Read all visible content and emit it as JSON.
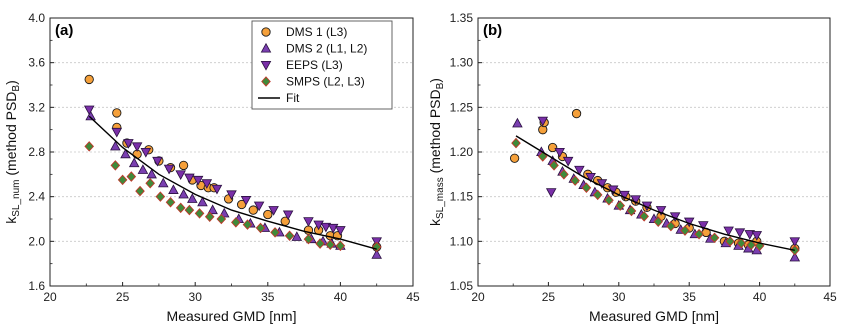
{
  "chart_data": [
    {
      "type": "scatter",
      "panel_label": "(a)",
      "xlabel": "Measured GMD [nm]",
      "ylabel": {
        "main": "k",
        "sub": "SL_num",
        "tail": " (method PSD",
        "tail_sub": "B",
        "end": ")"
      },
      "xlim": [
        20,
        45
      ],
      "ylim": [
        1.6,
        4.0
      ],
      "xticks": [
        "20",
        "25",
        "30",
        "35",
        "40",
        "45"
      ],
      "yticks": [
        "1.6",
        "2.0",
        "2.4",
        "2.8",
        "3.2",
        "3.6",
        "4.0"
      ],
      "grid": "horizontal dotted",
      "legend_position": "top-right",
      "series": [
        {
          "name": "DMS 1 (L3)",
          "marker": "circle",
          "color": "#f5a03a",
          "x": [
            22.7,
            24.6,
            24.6,
            25.3,
            26.0,
            26.8,
            27.5,
            28.3,
            29.2,
            29.8,
            30.4,
            30.9,
            31.3,
            32.3,
            33.2,
            34.0,
            35.0,
            36.2,
            37.8,
            38.5,
            39.3,
            39.8,
            42.5
          ],
          "y": [
            3.45,
            3.15,
            3.02,
            2.88,
            2.78,
            2.82,
            2.72,
            2.66,
            2.68,
            2.55,
            2.5,
            2.48,
            2.48,
            2.38,
            2.33,
            2.28,
            2.24,
            2.18,
            2.1,
            2.1,
            2.05,
            2.05,
            1.95
          ]
        },
        {
          "name": "DMS 2 (L1, L2)",
          "marker": "triangle-up",
          "color": "#7a3fb0",
          "x": [
            22.8,
            24.5,
            25.2,
            25.8,
            26.4,
            27.0,
            27.8,
            28.5,
            29.2,
            29.8,
            30.5,
            31.2,
            32.0,
            33.0,
            33.8,
            34.8,
            35.8,
            37.0,
            38.0,
            38.8,
            39.4,
            40.0,
            42.5
          ],
          "y": [
            3.12,
            2.85,
            2.78,
            2.7,
            2.64,
            2.6,
            2.52,
            2.46,
            2.42,
            2.38,
            2.35,
            2.28,
            2.25,
            2.2,
            2.16,
            2.12,
            2.08,
            2.04,
            2.02,
            2.0,
            1.98,
            1.96,
            1.88
          ]
        },
        {
          "name": "EEPS (L3)",
          "marker": "triangle-down",
          "color": "#7a2fa8",
          "x": [
            22.7,
            24.6,
            25.4,
            26.0,
            26.6,
            27.4,
            28.2,
            29.0,
            29.6,
            30.2,
            30.8,
            31.5,
            32.5,
            33.5,
            34.4,
            35.4,
            36.4,
            37.8,
            38.5,
            39.0,
            39.5,
            40.0,
            42.5
          ],
          "y": [
            3.18,
            2.98,
            2.88,
            2.85,
            2.8,
            2.72,
            2.65,
            2.6,
            2.57,
            2.55,
            2.52,
            2.47,
            2.42,
            2.37,
            2.32,
            2.28,
            2.24,
            2.18,
            2.15,
            2.13,
            2.12,
            2.1,
            2.0
          ]
        },
        {
          "name": "SMPS (L2, L3)",
          "marker": "diamond",
          "color": "#3f8a3a",
          "x": [
            22.7,
            24.5,
            25.0,
            25.6,
            26.2,
            26.9,
            27.6,
            28.3,
            29.0,
            29.6,
            30.3,
            31.0,
            31.8,
            32.8,
            33.6,
            34.5,
            35.5,
            36.5,
            37.8,
            38.6,
            39.3,
            40.0,
            42.5
          ],
          "y": [
            2.85,
            2.68,
            2.55,
            2.58,
            2.45,
            2.52,
            2.4,
            2.35,
            2.3,
            2.28,
            2.25,
            2.22,
            2.2,
            2.17,
            2.15,
            2.12,
            2.08,
            2.05,
            2.02,
            1.98,
            1.97,
            1.96,
            1.95
          ]
        }
      ],
      "fit": {
        "name": "Fit",
        "color": "#000000",
        "x": [
          22.7,
          25,
          27.5,
          30,
          32.5,
          35,
          37.5,
          40,
          42.5
        ],
        "y": [
          3.12,
          2.84,
          2.6,
          2.42,
          2.28,
          2.18,
          2.09,
          2.02,
          1.93
        ]
      }
    },
    {
      "type": "scatter",
      "panel_label": "(b)",
      "xlabel": "Measured GMD [nm]",
      "ylabel": {
        "main": "k",
        "sub": "SL_mass",
        "tail": " (method PSD",
        "tail_sub": "B",
        "end": ")"
      },
      "xlim": [
        20,
        45
      ],
      "ylim": [
        1.05,
        1.35
      ],
      "xticks": [
        "20",
        "25",
        "30",
        "35",
        "40",
        "45"
      ],
      "yticks": [
        "1.05",
        "1.10",
        "1.15",
        "1.20",
        "1.25",
        "1.30",
        "1.35"
      ],
      "grid": "horizontal dotted",
      "series": [
        {
          "name": "DMS 1 (L3)",
          "marker": "circle",
          "color": "#f5a03a",
          "x": [
            22.6,
            24.6,
            24.7,
            25.3,
            26.0,
            27.0,
            27.8,
            28.5,
            29.2,
            29.8,
            30.5,
            31.2,
            32.0,
            33.0,
            34.0,
            35.0,
            36.2,
            37.5,
            38.5,
            39.2,
            39.8,
            42.5
          ],
          "y": [
            1.193,
            1.225,
            1.233,
            1.205,
            1.195,
            1.243,
            1.175,
            1.168,
            1.16,
            1.155,
            1.15,
            1.145,
            1.138,
            1.128,
            1.12,
            1.115,
            1.11,
            1.1,
            1.098,
            1.096,
            1.1,
            1.092
          ]
        },
        {
          "name": "DMS 2 (L1, L2)",
          "marker": "triangle-up",
          "color": "#7a3fb0",
          "x": [
            22.8,
            24.5,
            25.3,
            26.0,
            26.8,
            27.5,
            28.3,
            29.2,
            30.0,
            30.8,
            31.6,
            32.5,
            33.4,
            34.4,
            35.4,
            36.5,
            37.6,
            38.5,
            39.2,
            39.8,
            42.5
          ],
          "y": [
            1.232,
            1.2,
            1.19,
            1.178,
            1.17,
            1.163,
            1.155,
            1.148,
            1.14,
            1.135,
            1.13,
            1.125,
            1.12,
            1.113,
            1.108,
            1.103,
            1.098,
            1.095,
            1.092,
            1.09,
            1.082
          ]
        },
        {
          "name": "EEPS (L3)",
          "marker": "triangle-down",
          "color": "#7a2fa8",
          "x": [
            24.6,
            25.2,
            25.8,
            26.4,
            27.2,
            28.0,
            28.8,
            29.6,
            30.4,
            31.2,
            32.0,
            33.0,
            34.0,
            35.0,
            36.0,
            37.8,
            38.6,
            39.3,
            39.8,
            42.5
          ],
          "y": [
            1.235,
            1.155,
            1.2,
            1.19,
            1.18,
            1.172,
            1.165,
            1.158,
            1.152,
            1.147,
            1.14,
            1.135,
            1.128,
            1.122,
            1.118,
            1.112,
            1.11,
            1.108,
            1.107,
            1.1
          ]
        },
        {
          "name": "SMPS (L2, L3)",
          "marker": "diamond",
          "color": "#3f8a3a",
          "x": [
            22.7,
            24.6,
            25.4,
            26.1,
            26.9,
            27.7,
            28.5,
            29.3,
            30.1,
            30.9,
            31.8,
            32.8,
            33.7,
            34.7,
            35.7,
            36.8,
            37.9,
            38.7,
            39.4,
            40.0,
            42.5
          ],
          "y": [
            1.21,
            1.195,
            1.185,
            1.175,
            1.168,
            1.16,
            1.152,
            1.146,
            1.14,
            1.134,
            1.128,
            1.122,
            1.117,
            1.112,
            1.108,
            1.104,
            1.1,
            1.098,
            1.096,
            1.095,
            1.09
          ]
        }
      ],
      "fit": {
        "name": "Fit",
        "color": "#000000",
        "x": [
          22.7,
          25,
          27.5,
          30,
          32.5,
          35,
          37.5,
          40,
          42.5
        ],
        "y": [
          1.218,
          1.196,
          1.172,
          1.152,
          1.135,
          1.12,
          1.108,
          1.098,
          1.09
        ]
      }
    }
  ],
  "legend": {
    "entries": [
      {
        "label": "DMS 1 (L3)",
        "marker": "circle",
        "color": "#f5a03a"
      },
      {
        "label": "DMS 2 (L1, L2)",
        "marker": "triangle-up",
        "color": "#7a3fb0"
      },
      {
        "label": "EEPS (L3)",
        "marker": "triangle-down",
        "color": "#7a2fa8"
      },
      {
        "label": "SMPS (L2, L3)",
        "marker": "diamond",
        "color": "#3f8a3a"
      },
      {
        "label": "Fit",
        "marker": "line",
        "color": "#000000"
      }
    ]
  }
}
